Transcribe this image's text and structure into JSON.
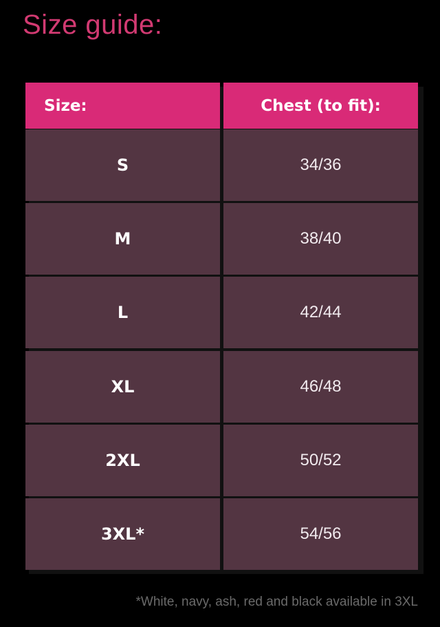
{
  "title": "Size guide:",
  "colors": {
    "accent": "#d92a77",
    "cell": "#533542",
    "background": "#000000"
  },
  "table": {
    "headers": [
      "Size:",
      "Chest (to fit):"
    ],
    "rows": [
      {
        "size": "S",
        "chest": "34/36"
      },
      {
        "size": "M",
        "chest": "38/40"
      },
      {
        "size": "L",
        "chest": "42/44"
      },
      {
        "size": "XL",
        "chest": "46/48"
      },
      {
        "size": "2XL",
        "chest": "50/52"
      },
      {
        "size": "3XL*",
        "chest": "54/56"
      }
    ]
  },
  "footnote": "*White, navy, ash, red and black available in 3XL"
}
